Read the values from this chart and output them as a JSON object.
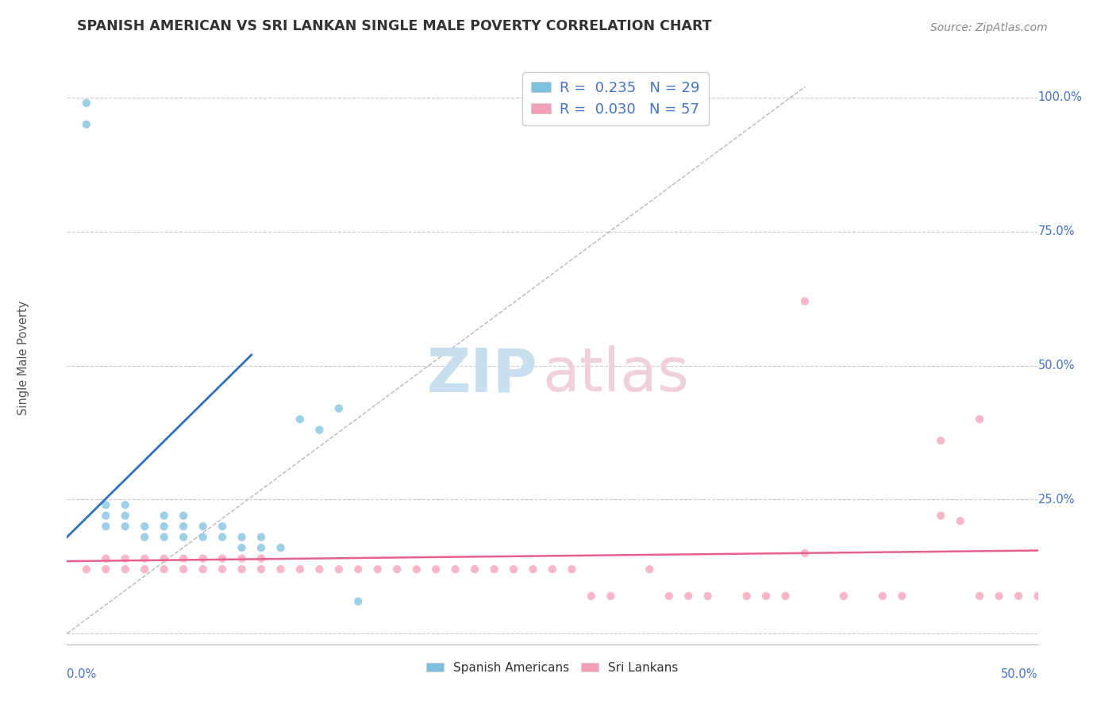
{
  "title": "SPANISH AMERICAN VS SRI LANKAN SINGLE MALE POVERTY CORRELATION CHART",
  "source": "Source: ZipAtlas.com",
  "ylabel": "Single Male Poverty",
  "y_ticks": [
    0.0,
    0.25,
    0.5,
    0.75,
    1.0
  ],
  "y_tick_labels": [
    "",
    "25.0%",
    "50.0%",
    "75.0%",
    "100.0%"
  ],
  "xlim": [
    0.0,
    0.5
  ],
  "ylim": [
    -0.02,
    1.05
  ],
  "blue_color": "#7fbfdf",
  "pink_color": "#f4a0b8",
  "blue_line_color": "#3070c0",
  "pink_line_color": "#e86090",
  "ref_line_color": "#aaaaaa",
  "background_color": "#ffffff",
  "title_color": "#333333",
  "axis_color": "#4472c4",
  "legend_text_color": "#333333",
  "legend_R_color": "#4472c4",
  "legend_N_color": "#4472c4",
  "spanish_x": [
    0.01,
    0.01,
    0.02,
    0.02,
    0.02,
    0.03,
    0.03,
    0.03,
    0.04,
    0.04,
    0.05,
    0.05,
    0.05,
    0.06,
    0.06,
    0.06,
    0.07,
    0.07,
    0.08,
    0.08,
    0.09,
    0.09,
    0.1,
    0.1,
    0.11,
    0.12,
    0.13,
    0.14,
    0.15
  ],
  "spanish_y": [
    0.95,
    0.99,
    0.2,
    0.22,
    0.24,
    0.2,
    0.22,
    0.24,
    0.18,
    0.2,
    0.18,
    0.2,
    0.22,
    0.18,
    0.2,
    0.22,
    0.18,
    0.2,
    0.18,
    0.2,
    0.16,
    0.18,
    0.16,
    0.18,
    0.16,
    0.4,
    0.38,
    0.42,
    0.06
  ],
  "srilanka_x": [
    0.01,
    0.02,
    0.02,
    0.03,
    0.03,
    0.04,
    0.04,
    0.05,
    0.05,
    0.06,
    0.06,
    0.07,
    0.07,
    0.08,
    0.08,
    0.09,
    0.09,
    0.1,
    0.1,
    0.11,
    0.12,
    0.13,
    0.14,
    0.15,
    0.16,
    0.17,
    0.18,
    0.19,
    0.2,
    0.21,
    0.22,
    0.23,
    0.24,
    0.25,
    0.26,
    0.27,
    0.28,
    0.3,
    0.31,
    0.32,
    0.33,
    0.35,
    0.36,
    0.37,
    0.38,
    0.4,
    0.42,
    0.43,
    0.45,
    0.46,
    0.47,
    0.48,
    0.49,
    0.5,
    0.38,
    0.45,
    0.47
  ],
  "srilanka_y": [
    0.12,
    0.12,
    0.14,
    0.12,
    0.14,
    0.12,
    0.14,
    0.12,
    0.14,
    0.12,
    0.14,
    0.12,
    0.14,
    0.12,
    0.14,
    0.12,
    0.14,
    0.12,
    0.14,
    0.12,
    0.12,
    0.12,
    0.12,
    0.12,
    0.12,
    0.12,
    0.12,
    0.12,
    0.12,
    0.12,
    0.12,
    0.12,
    0.12,
    0.12,
    0.12,
    0.07,
    0.07,
    0.12,
    0.07,
    0.07,
    0.07,
    0.07,
    0.07,
    0.07,
    0.15,
    0.07,
    0.07,
    0.07,
    0.22,
    0.21,
    0.07,
    0.07,
    0.07,
    0.07,
    0.62,
    0.36,
    0.4
  ]
}
